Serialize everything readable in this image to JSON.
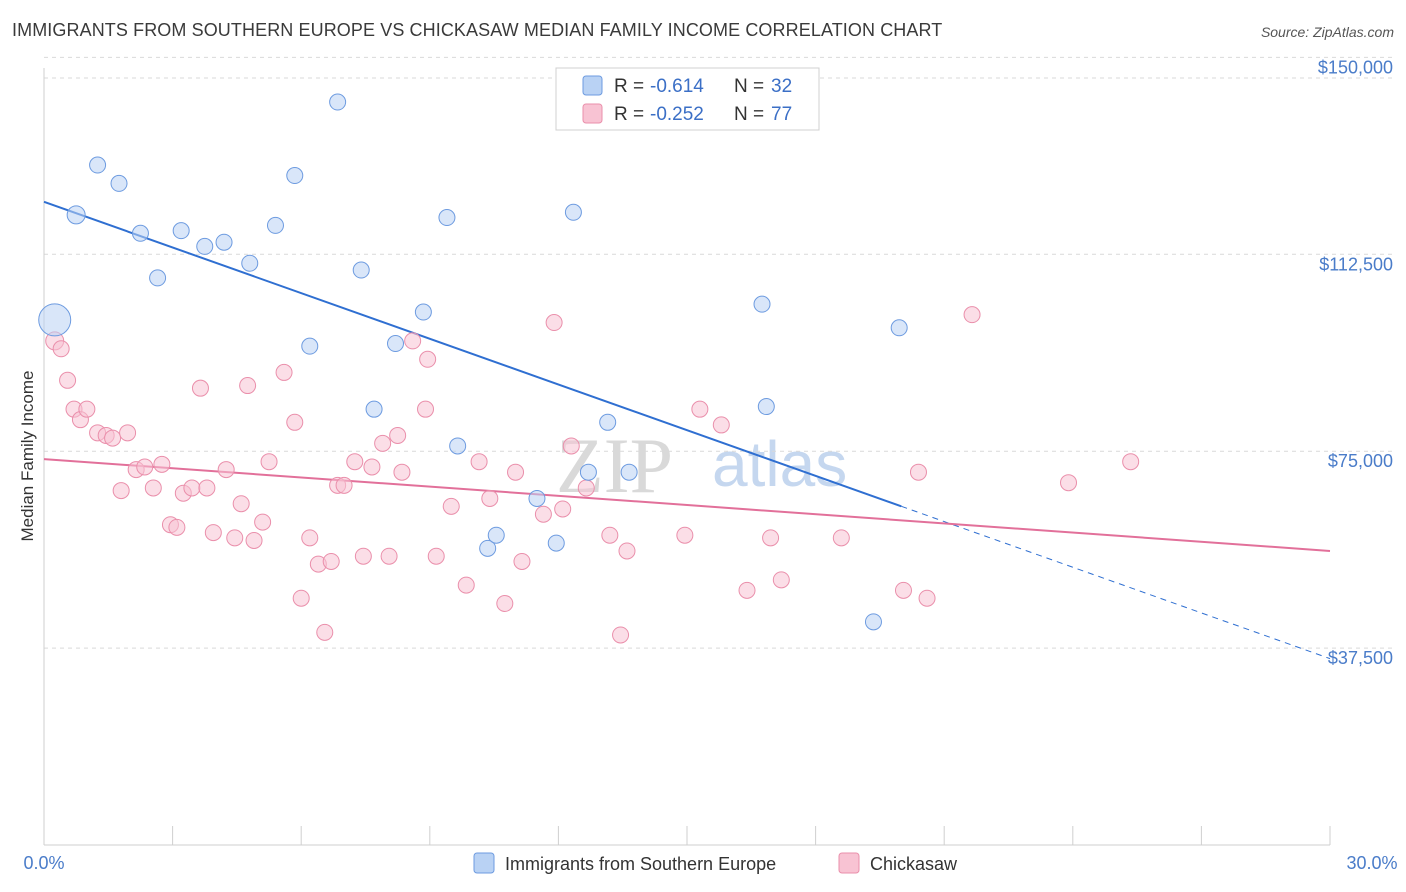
{
  "header": {
    "title": "IMMIGRANTS FROM SOUTHERN EUROPE VS CHICKASAW MEDIAN FAMILY INCOME CORRELATION CHART",
    "source": "Source: ZipAtlas.com"
  },
  "watermark": {
    "zip": "ZIP",
    "atlas": "atlas"
  },
  "legend": {
    "rows": [
      {
        "r_label": "R =",
        "r_value": "-0.614",
        "n_label": "N =",
        "n_value": "32"
      },
      {
        "r_label": "R =",
        "r_value": "-0.252",
        "n_label": "N =",
        "n_value": "77"
      }
    ]
  },
  "bottom_legend": {
    "items": [
      "Immigrants from Southern Europe",
      "Chickasaw"
    ]
  },
  "colors": {
    "blue_fill": "#b9d2f4",
    "blue_stroke": "#6d9be0",
    "blue_line": "#2f6fd1",
    "pink_fill": "#f8c3d3",
    "pink_stroke": "#ea8fab",
    "pink_line": "#e2709a",
    "grid": "#d9d9d9",
    "tick_text": "#4a7cc9"
  },
  "chart_data": {
    "type": "scatter",
    "xlabel": "",
    "ylabel": "Median Family Income",
    "xlim": [
      0,
      30
    ],
    "ylim": [
      0,
      157500
    ],
    "x_tick_labels": [
      "0.0%",
      "30.0%"
    ],
    "y_ticks": [
      37500,
      75000,
      112500,
      150000
    ],
    "y_tick_labels": [
      "$37,500",
      "$75,000",
      "$112,500",
      "$150,000"
    ],
    "grid": true,
    "legend_position": "top-center",
    "series": [
      {
        "name": "Immigrants from Southern Europe",
        "color": "#6d9be0",
        "points": [
          [
            0.25,
            100000,
            16
          ],
          [
            0.75,
            120000,
            9
          ],
          [
            1.25,
            129500,
            8
          ],
          [
            1.75,
            126000,
            8
          ],
          [
            2.25,
            116500,
            8
          ],
          [
            2.65,
            108000,
            8
          ],
          [
            3.2,
            117000,
            8
          ],
          [
            3.75,
            114000,
            8
          ],
          [
            4.2,
            114800,
            8
          ],
          [
            4.8,
            110800,
            8
          ],
          [
            5.4,
            118000,
            8
          ],
          [
            5.85,
            127500,
            8
          ],
          [
            6.2,
            95000,
            8
          ],
          [
            6.85,
            141500,
            8
          ],
          [
            7.4,
            109500,
            8
          ],
          [
            7.7,
            83000,
            8
          ],
          [
            8.2,
            95500,
            8
          ],
          [
            8.85,
            101500,
            8
          ],
          [
            9.4,
            119500,
            8
          ],
          [
            9.65,
            76000,
            8
          ],
          [
            10.35,
            56500,
            8
          ],
          [
            10.55,
            59000,
            8
          ],
          [
            11.5,
            66000,
            8
          ],
          [
            11.95,
            57500,
            8
          ],
          [
            12.35,
            120500,
            8
          ],
          [
            12.7,
            71000,
            8
          ],
          [
            13.15,
            80500,
            8
          ],
          [
            13.65,
            71000,
            8
          ],
          [
            16.75,
            103000,
            8
          ],
          [
            16.85,
            83500,
            8
          ],
          [
            19.35,
            42500,
            8
          ],
          [
            19.95,
            98500,
            8
          ]
        ],
        "trend_start": [
          0,
          122500
        ],
        "trend_end": [
          20.0,
          64500
        ],
        "trend_extrapolated_end": [
          30,
          35500
        ]
      },
      {
        "name": "Chickasaw",
        "color": "#ea8fab",
        "points": [
          [
            0.25,
            96000,
            9
          ],
          [
            0.4,
            94500,
            8
          ],
          [
            0.55,
            88500,
            8
          ],
          [
            0.7,
            83000,
            8
          ],
          [
            0.85,
            81000,
            8
          ],
          [
            1.0,
            83000,
            8
          ],
          [
            1.25,
            78500,
            8
          ],
          [
            1.45,
            78000,
            8
          ],
          [
            1.6,
            77500,
            8
          ],
          [
            1.8,
            67500,
            8
          ],
          [
            1.95,
            78500,
            8
          ],
          [
            2.15,
            71500,
            8
          ],
          [
            2.35,
            72000,
            8
          ],
          [
            2.55,
            68000,
            8
          ],
          [
            2.75,
            72500,
            8
          ],
          [
            2.95,
            61000,
            8
          ],
          [
            3.1,
            60500,
            8
          ],
          [
            3.25,
            67000,
            8
          ],
          [
            3.45,
            68000,
            8
          ],
          [
            3.65,
            87000,
            8
          ],
          [
            3.8,
            68000,
            8
          ],
          [
            3.95,
            59500,
            8
          ],
          [
            4.25,
            71500,
            8
          ],
          [
            4.45,
            58500,
            8
          ],
          [
            4.6,
            65000,
            8
          ],
          [
            4.75,
            87500,
            8
          ],
          [
            4.9,
            58000,
            8
          ],
          [
            5.1,
            61500,
            8
          ],
          [
            5.25,
            73000,
            8
          ],
          [
            5.6,
            90000,
            8
          ],
          [
            5.85,
            80500,
            8
          ],
          [
            6.0,
            47000,
            8
          ],
          [
            6.2,
            58500,
            8
          ],
          [
            6.4,
            53500,
            8
          ],
          [
            6.55,
            40500,
            8
          ],
          [
            6.7,
            54000,
            8
          ],
          [
            6.85,
            68500,
            8
          ],
          [
            7.0,
            68500,
            8
          ],
          [
            7.25,
            73000,
            8
          ],
          [
            7.45,
            55000,
            8
          ],
          [
            7.65,
            72000,
            8
          ],
          [
            7.9,
            76500,
            8
          ],
          [
            8.05,
            55000,
            8
          ],
          [
            8.25,
            78000,
            8
          ],
          [
            8.35,
            71000,
            8
          ],
          [
            8.6,
            96000,
            8
          ],
          [
            8.9,
            83000,
            8
          ],
          [
            8.95,
            92500,
            8
          ],
          [
            9.15,
            55000,
            8
          ],
          [
            9.5,
            64500,
            8
          ],
          [
            9.85,
            49500,
            8
          ],
          [
            10.15,
            73000,
            8
          ],
          [
            10.4,
            66000,
            8
          ],
          [
            10.75,
            46000,
            8
          ],
          [
            11.0,
            71000,
            8
          ],
          [
            11.15,
            54000,
            8
          ],
          [
            11.65,
            63000,
            8
          ],
          [
            11.9,
            99500,
            8
          ],
          [
            12.1,
            64000,
            8
          ],
          [
            12.3,
            76000,
            8
          ],
          [
            12.65,
            68000,
            8
          ],
          [
            13.2,
            59000,
            8
          ],
          [
            13.45,
            40000,
            8
          ],
          [
            13.6,
            56000,
            8
          ],
          [
            14.95,
            59000,
            8
          ],
          [
            15.3,
            83000,
            8
          ],
          [
            15.8,
            80000,
            8
          ],
          [
            16.4,
            48500,
            8
          ],
          [
            16.95,
            58500,
            8
          ],
          [
            17.2,
            50500,
            8
          ],
          [
            18.6,
            58500,
            8
          ],
          [
            20.05,
            48500,
            8
          ],
          [
            20.4,
            71000,
            8
          ],
          [
            20.6,
            47000,
            8
          ],
          [
            21.65,
            101000,
            8
          ],
          [
            23.9,
            69000,
            8
          ],
          [
            25.35,
            73000,
            8
          ]
        ],
        "trend_start": [
          0,
          73500
        ],
        "trend_end": [
          30,
          56000
        ]
      }
    ]
  }
}
